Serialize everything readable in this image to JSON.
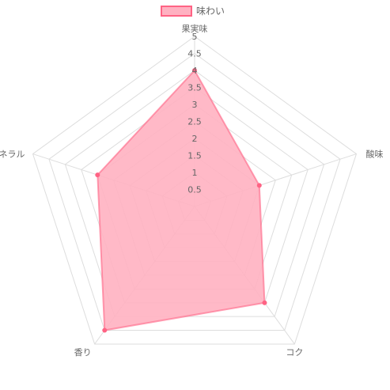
{
  "chart_data": {
    "type": "radar",
    "legend_position": "top",
    "grid": true,
    "axes": [
      "果実味",
      "酸味",
      "コク",
      "香り",
      "ミネラル"
    ],
    "r_range": [
      0,
      5
    ],
    "r_ticks": [
      "0.5",
      "1",
      "1.5",
      "2",
      "2.5",
      "3",
      "3.5",
      "4",
      "4.5",
      "5"
    ],
    "series": [
      {
        "name": "味わい",
        "values": [
          4,
          2,
          3.5,
          4.5,
          3
        ],
        "fill_color": "#ffb1c1",
        "line_color": "#ff6384"
      }
    ]
  }
}
